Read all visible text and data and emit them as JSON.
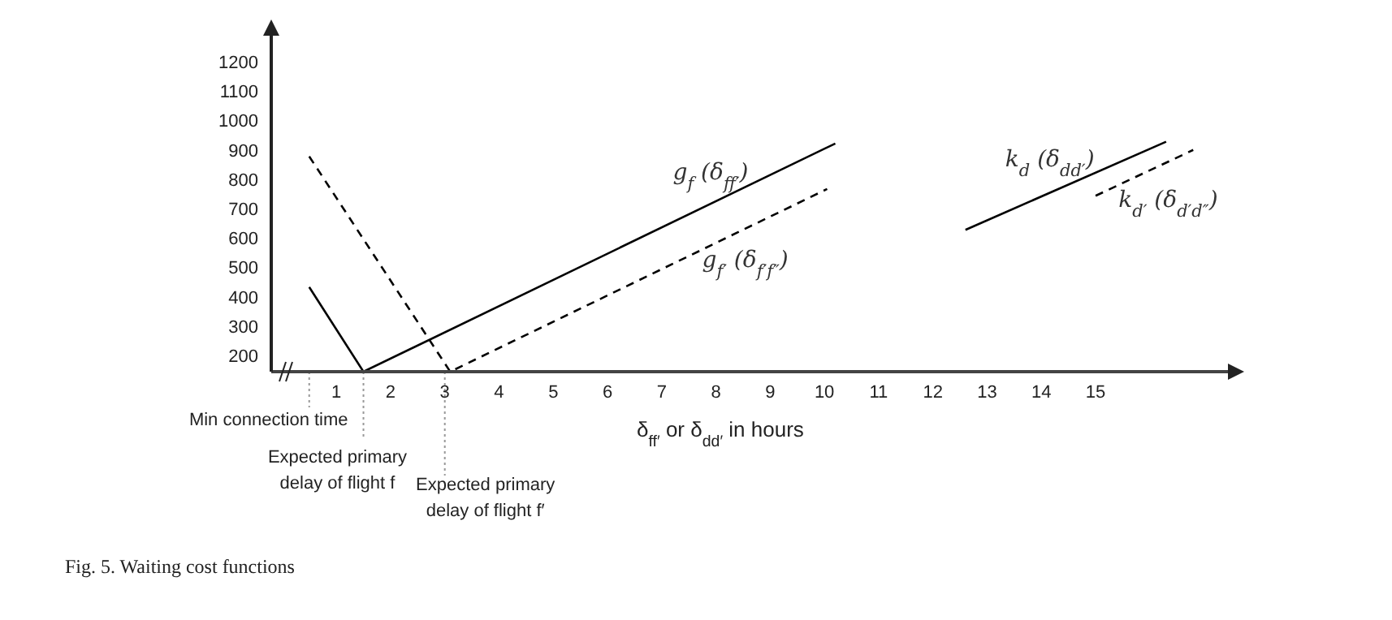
{
  "chart_data": {
    "type": "line",
    "xlabel": "δ$_{ff′}$ or δ$_{dd′}$ in hours",
    "xlim": [
      -0.2,
      17.5
    ],
    "xticks": [
      1,
      2,
      3,
      4,
      5,
      6,
      7,
      8,
      9,
      10,
      11,
      12,
      13,
      14,
      15
    ],
    "ylim": [
      145,
      1300
    ],
    "yticks": [
      200,
      300,
      400,
      500,
      600,
      700,
      800,
      900,
      1000,
      1100,
      1200
    ],
    "marker": "none",
    "series": [
      {
        "name": "g$_{f}$ (δ$_{ff′}$)",
        "color": "#000000",
        "line_style": "solid",
        "x": [
          0.5,
          1.5,
          10.2
        ],
        "values": [
          433,
          145,
          922
        ]
      },
      {
        "name": "g$_{f′}$ (δ$_{f′f″}$)",
        "color": "#000000",
        "line_style": "dashed",
        "x": [
          0.5,
          3.1,
          10.05
        ],
        "values": [
          878,
          145,
          767
        ]
      },
      {
        "name": "k$_{d}$ (δ$_{dd′}$)",
        "color": "#000000",
        "line_style": "solid",
        "x": [
          12.6,
          16.3
        ],
        "values": [
          628,
          928
        ]
      },
      {
        "name": "k$_{d′}$ (δ$_{d′d″}$)",
        "color": "#000000",
        "line_style": "dashed",
        "x": [
          15.0,
          16.8
        ],
        "values": [
          744,
          900
        ]
      }
    ],
    "ref_lines": [
      {
        "axis": "x",
        "value": 0.5,
        "label": "Min connection time",
        "color": "#999999",
        "line_style": "dotted"
      },
      {
        "axis": "x",
        "value": 1.5,
        "label": "Expected primary delay of flight f",
        "color": "#999999",
        "line_style": "dotted"
      },
      {
        "axis": "x",
        "value": 3,
        "label": "Expected primary delay of flight f′",
        "color": "#999999",
        "line_style": "dotted"
      }
    ],
    "annotations": [
      "Fig. 5. Waiting cost functions"
    ]
  }
}
